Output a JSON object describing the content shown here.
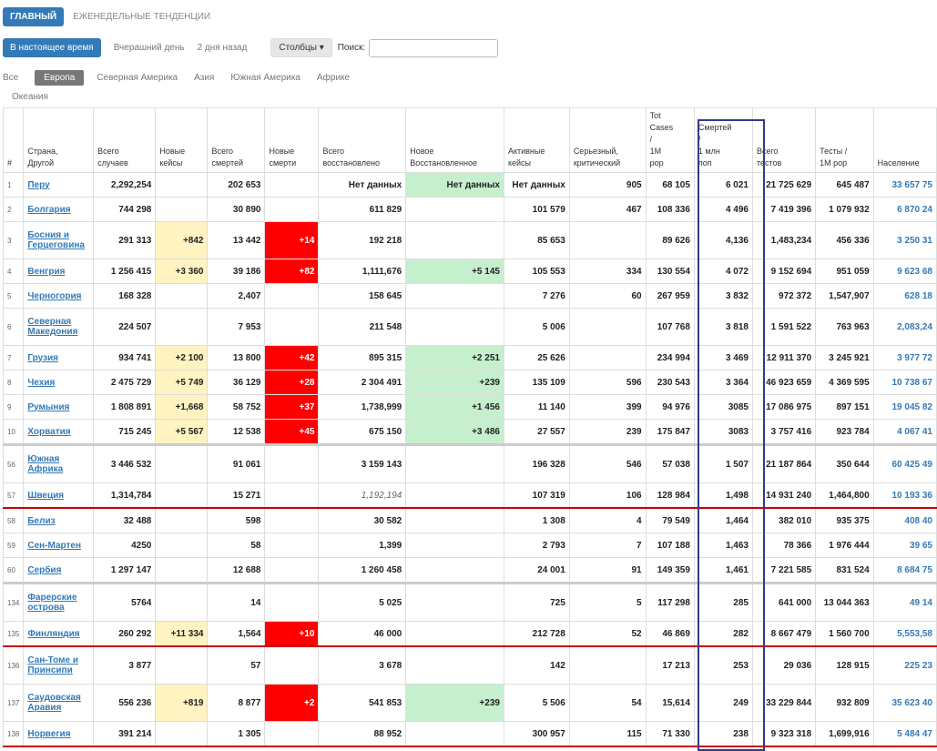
{
  "topnav": {
    "main": "ГЛАВНЫЙ",
    "weekly": "ЕЖЕНЕДЕЛЬНЫЕ ТЕНДЕНЦИИ"
  },
  "toolbar": {
    "now": "В настоящее время",
    "yesterday": "Вчерашний день",
    "two_days": "2 дня назад",
    "columns": "Столбцы ▾",
    "search_label": "Поиск:",
    "search_value": ""
  },
  "regions": [
    "Все",
    "Европа",
    "Северная Америка",
    "Азия",
    "Южная Америка",
    "Африке"
  ],
  "regions2": "Океания",
  "headers": [
    "#",
    "Страна,\nДругой",
    "Всего\nслучаев",
    "Новые\nкейсы",
    "Всего\nсмертей",
    "Новые\nсмерти",
    "Всего\nвосстановлено",
    "Новое\nВосстановленное",
    "Активные\nкейсы",
    "Серьезный,\nкритический",
    "Tot\nCases\n/\n1M\npop",
    "Смертей\n/\n1 млн\nпоп",
    "Всего\nтестов",
    "Тесты /\n1M pop",
    "Население"
  ],
  "rows": [
    [
      "1",
      "Перу",
      "2,292,254",
      "",
      "202 653",
      "",
      "Нет данных",
      "Нет данных",
      "Нет данных",
      "905",
      "68 105",
      "6 021",
      "21 725 629",
      "645 487",
      "33 657 75"
    ],
    [
      "2",
      "Болгария",
      "744 298",
      "",
      "30 890",
      "",
      "611 829",
      "",
      "101 579",
      "467",
      "108 336",
      "4 496",
      "7 419 396",
      "1 079 932",
      "6 870 24"
    ],
    [
      "3",
      "Босния и Герцеговина",
      "291 313",
      "+842",
      "13 442",
      "+14",
      "192 218",
      "",
      "85 653",
      "",
      "89 626",
      "4,136",
      "1,483,234",
      "456 336",
      "3 250 31"
    ],
    [
      "4",
      "Венгрия",
      "1 256 415",
      "+3 360",
      "39 186",
      "+82",
      "1,111,676",
      "+5 145",
      "105 553",
      "334",
      "130 554",
      "4 072",
      "9 152 694",
      "951 059",
      "9 623 68"
    ],
    [
      "5",
      "Черногория",
      "168 328",
      "",
      "2,407",
      "",
      "158 645",
      "",
      "7 276",
      "60",
      "267 959",
      "3 832",
      "972 372",
      "1,547,907",
      "628 18"
    ],
    [
      "6",
      "Северная Македония",
      "224 507",
      "",
      "7 953",
      "",
      "211 548",
      "",
      "5 006",
      "",
      "107 768",
      "3 818",
      "1 591 522",
      "763 963",
      "2,083,24"
    ],
    [
      "7",
      "Грузия",
      "934 741",
      "+2 100",
      "13 800",
      "+42",
      "895 315",
      "+2 251",
      "25 626",
      "",
      "234 994",
      "3 469",
      "12 911 370",
      "3 245 921",
      "3 977 72"
    ],
    [
      "8",
      "Чехия",
      "2 475 729",
      "+5 749",
      "36 129",
      "+28",
      "2 304 491",
      "+239",
      "135 109",
      "596",
      "230 543",
      "3 364",
      "46 923 659",
      "4 369 595",
      "10 738 67"
    ],
    [
      "9",
      "Румыния",
      "1 808 891",
      "+1,668",
      "58 752",
      "+37",
      "1,738,999",
      "+1 456",
      "11 140",
      "399",
      "94 976",
      "3085",
      "17 086 975",
      "897 151",
      "19 045 82"
    ],
    [
      "10",
      "Хорватия",
      "715 245",
      "+5 567",
      "12 538",
      "+45",
      "675 150",
      "+3 486",
      "27 557",
      "239",
      "175 847",
      "3083",
      "3 757 416",
      "923 784",
      "4 067 41"
    ],
    [
      "56",
      "Южная Африка",
      "3 446 532",
      "",
      "91 061",
      "",
      "3 159 143",
      "",
      "196 328",
      "546",
      "57 038",
      "1 507",
      "21 187 864",
      "350 644",
      "60 425 49"
    ],
    [
      "57",
      "Швеция",
      "1,314,784",
      "",
      "15 271",
      "",
      "1,192,194",
      "",
      "107 319",
      "106",
      "128 984",
      "1,498",
      "14 931 240",
      "1,464,800",
      "10 193 36"
    ],
    [
      "58",
      "Белиз",
      "32 488",
      "",
      "598",
      "",
      "30 582",
      "",
      "1 308",
      "4",
      "79 549",
      "1,464",
      "382 010",
      "935 375",
      "408 40"
    ],
    [
      "59",
      "Сен-Мартен",
      "4250",
      "",
      "58",
      "",
      "1,399",
      "",
      "2 793",
      "7",
      "107 188",
      "1,463",
      "78 366",
      "1 976 444",
      "39 65"
    ],
    [
      "60",
      "Сербия",
      "1 297 147",
      "",
      "12 688",
      "",
      "1 260 458",
      "",
      "24 001",
      "91",
      "149 359",
      "1,461",
      "7 221 585",
      "831 524",
      "8 684 75"
    ],
    [
      "134",
      "Фарерские острова",
      "5764",
      "",
      "14",
      "",
      "5 025",
      "",
      "725",
      "5",
      "117 298",
      "285",
      "641 000",
      "13 044 363",
      "49 14"
    ],
    [
      "135",
      "Финляндия",
      "260 292",
      "+11 334",
      "1,564",
      "+10",
      "46 000",
      "",
      "212 728",
      "52",
      "46 869",
      "282",
      "8 667 479",
      "1 560 700",
      "5,553,58"
    ],
    [
      "136",
      "Сан-Томе и Принсипи",
      "3 877",
      "",
      "57",
      "",
      "3 678",
      "",
      "142",
      "",
      "17 213",
      "253",
      "29 036",
      "128 915",
      "225 23"
    ],
    [
      "137",
      "Саудовская Аравия",
      "556 236",
      "+819",
      "8 877",
      "+2",
      "541 853",
      "+239",
      "5 506",
      "54",
      "15,614",
      "249",
      "33 229 844",
      "932 809",
      "35 623 40"
    ],
    [
      "138",
      "Норвегия",
      "391 214",
      "",
      "1 305",
      "",
      "88 952",
      "",
      "300 957",
      "115",
      "71 330",
      "238",
      "9 323 318",
      "1,699,916",
      "5 484 47"
    ]
  ]
}
